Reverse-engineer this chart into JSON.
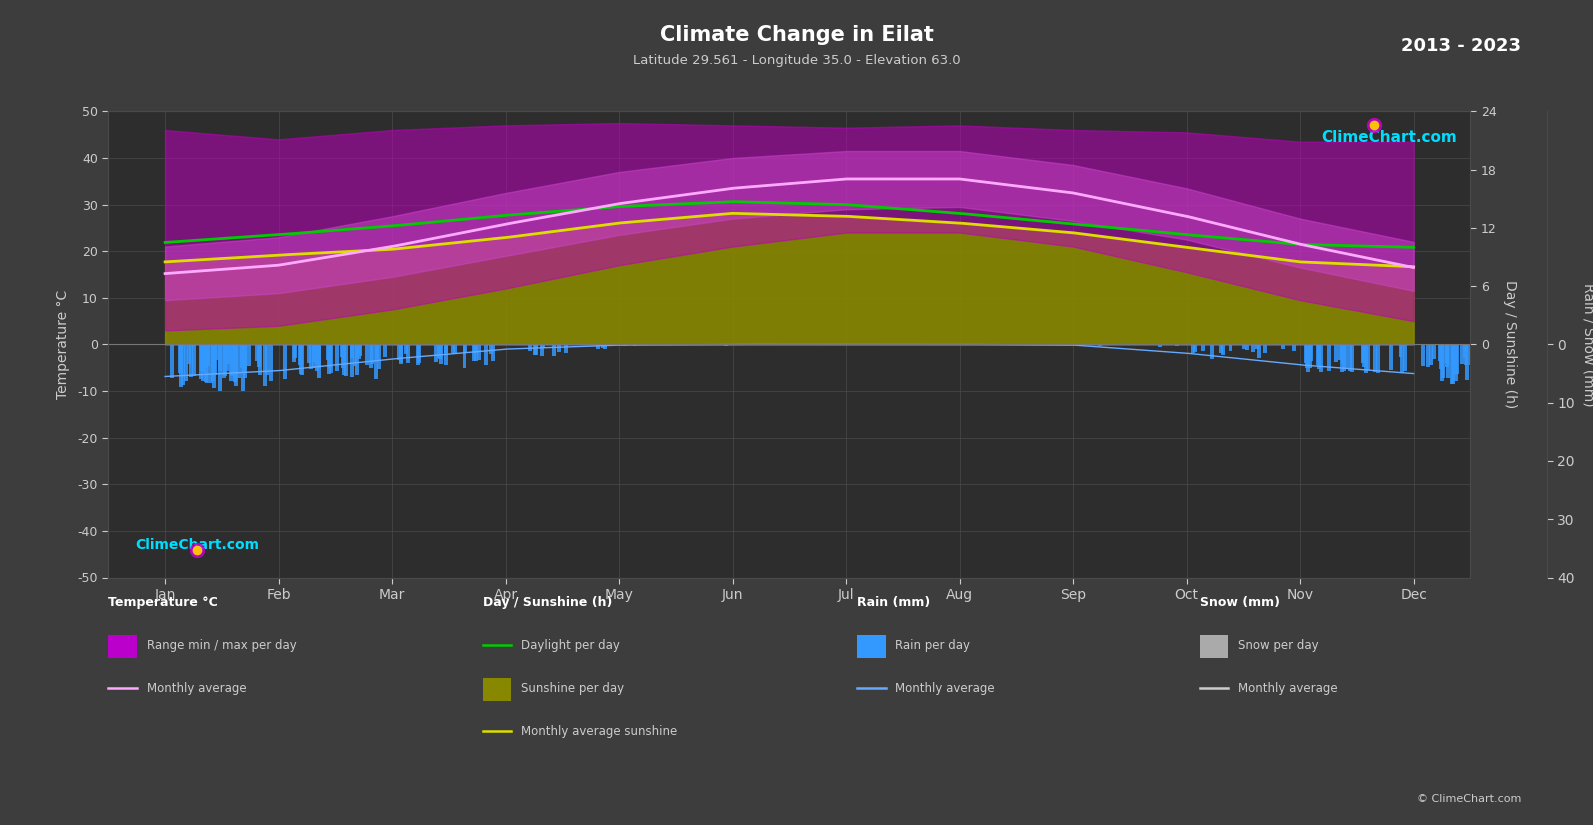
{
  "title": "Climate Change in Eilat",
  "subtitle": "Latitude 29.561 - Longitude 35.0 - Elevation 63.0",
  "year_range": "2013 - 2023",
  "bg_color": "#3d3d3d",
  "plot_bg_color": "#2d2d2d",
  "grid_color": "#4a4a4a",
  "text_color": "#cccccc",
  "months": [
    "Jan",
    "Feb",
    "Mar",
    "Apr",
    "May",
    "Jun",
    "Jul",
    "Aug",
    "Sep",
    "Oct",
    "Nov",
    "Dec"
  ],
  "temp_min_monthly_avg": [
    9.5,
    11.0,
    14.5,
    19.0,
    23.5,
    27.0,
    29.0,
    29.5,
    26.5,
    22.5,
    16.5,
    11.5
  ],
  "temp_max_monthly_avg": [
    21.0,
    23.0,
    27.5,
    32.5,
    37.0,
    40.0,
    41.5,
    41.5,
    38.5,
    33.5,
    27.0,
    22.0
  ],
  "temp_monthly_avg": [
    15.2,
    17.0,
    21.0,
    25.8,
    30.2,
    33.5,
    35.5,
    35.5,
    32.5,
    27.5,
    21.5,
    16.5
  ],
  "temp_min_abs_daily": [
    3.0,
    4.0,
    7.5,
    12.0,
    17.0,
    21.0,
    24.0,
    24.0,
    21.0,
    15.5,
    9.5,
    5.0
  ],
  "temp_max_abs_daily": [
    46.0,
    44.0,
    46.0,
    47.0,
    47.5,
    47.0,
    46.5,
    47.0,
    46.0,
    45.5,
    43.5,
    43.5
  ],
  "daylight_hours": [
    10.5,
    11.3,
    12.2,
    13.3,
    14.2,
    14.7,
    14.4,
    13.5,
    12.4,
    11.3,
    10.3,
    10.0
  ],
  "sunshine_hours_daily": [
    8.5,
    9.2,
    9.8,
    11.0,
    12.5,
    13.5,
    13.2,
    12.5,
    11.5,
    10.0,
    8.5,
    8.0
  ],
  "sunshine_monthly_avg": [
    8.5,
    9.2,
    9.8,
    11.0,
    12.5,
    13.5,
    13.2,
    12.5,
    11.5,
    10.0,
    8.5,
    8.0
  ],
  "rain_daily_max_mm": [
    8.0,
    6.0,
    4.0,
    2.0,
    0.5,
    0.0,
    0.0,
    0.0,
    0.5,
    2.5,
    5.0,
    7.0
  ],
  "rain_monthly_avg_mm": [
    5.5,
    4.5,
    2.5,
    0.8,
    0.1,
    0.0,
    0.0,
    0.0,
    0.1,
    1.5,
    3.5,
    5.0
  ],
  "temp_ylim": [
    -50,
    50
  ],
  "temp_yticks": [
    -50,
    -40,
    -30,
    -20,
    -10,
    0,
    10,
    20,
    30,
    40,
    50
  ],
  "sunshine_ticks_h": [
    0,
    6,
    12,
    18,
    24
  ],
  "rain_ticks_mm": [
    0,
    10,
    20,
    30,
    40
  ],
  "color_temp_abs_fill": "#bb00bb",
  "color_temp_monthly_fill": "#dd55dd",
  "color_sunshine_fill": "#999900",
  "color_daylight_line": "#00cc00",
  "color_monthly_avg_temp": "#ffaaff",
  "color_monthly_avg_sunshine": "#dddd00",
  "color_rain_bar": "#3399ff",
  "color_rain_monthly": "#66aaff",
  "color_snow_bar": "#aaaaaa",
  "color_snow_monthly": "#cccccc",
  "logo_text": "ClimeChart.com",
  "copyright_text": "© ClimeChart.com"
}
